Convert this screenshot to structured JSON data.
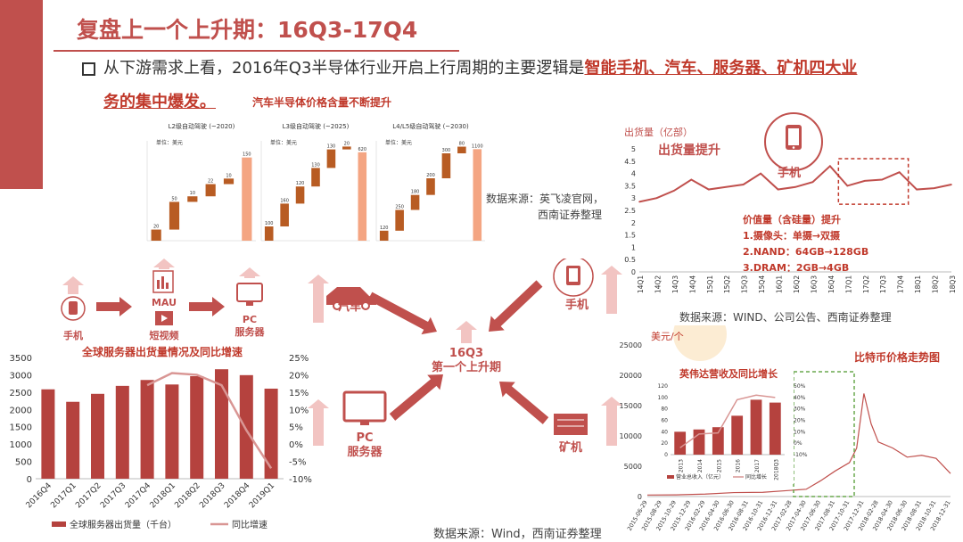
{
  "slide": {
    "title": "复盘上一个上升期：16Q3-17Q4",
    "bullet_pre": "从下游需求上看，2016年Q3半导体行业开启上行周期的主要逻辑是",
    "bullet_bold": "智能手机、汽车、服务器、矿机四大业",
    "bullet_line2": "务的集中爆发。"
  },
  "colors": {
    "accent": "#c0504d",
    "bar": "#b5423e",
    "line": "#d99694",
    "wf_dark": "#b85c23",
    "wf_light": "#f4a582"
  },
  "auto": {
    "heading": "汽车半导体价格含量不断提升",
    "panels": [
      {
        "title": "L2级自动驾驶 (~2020)",
        "unit": "单位：美元",
        "values": [
          20,
          50,
          10,
          22,
          10,
          150
        ]
      },
      {
        "title": "L3级自动驾驶 (~2025)",
        "unit": "单位：美元",
        "values": [
          100,
          160,
          120,
          130,
          130,
          20,
          620
        ]
      },
      {
        "title": "L4/L5级自动驾驶 (~2030)",
        "unit": "单位：美元",
        "values": [
          120,
          250,
          180,
          200,
          300,
          80,
          1100
        ]
      }
    ],
    "source": "数据来源：英飞凌官网，",
    "source2": "西南证券整理"
  },
  "phone_chart": {
    "ylabel": "出货量（亿部）",
    "label": "出货量提升",
    "icon_label": "手机",
    "value_title": "价值量（含硅量）提升",
    "value_items": [
      "1.摄像头：单摄→双摄",
      "2.NAND：64GB→128GB",
      "3.DRAM：2GB→4GB"
    ],
    "source": "数据来源：WIND、公司公告、西南证券整理",
    "chart_data": {
      "type": "line",
      "x": [
        "14Q1",
        "14Q2",
        "14Q3",
        "14Q4",
        "15Q1",
        "15Q2",
        "15Q3",
        "15Q4",
        "16Q1",
        "16Q2",
        "16Q3",
        "16Q4",
        "17Q1",
        "17Q2",
        "17Q3",
        "17Q4",
        "18Q1",
        "18Q2",
        "18Q3"
      ],
      "values": [
        2.85,
        3.0,
        3.3,
        3.75,
        3.35,
        3.45,
        3.55,
        4.0,
        3.35,
        3.45,
        3.65,
        4.3,
        3.5,
        3.7,
        3.75,
        4.05,
        3.35,
        3.4,
        3.55
      ],
      "ylim": [
        0,
        5
      ],
      "yticks": [
        "0",
        "0.5",
        "1",
        "1.5",
        "2",
        "2.5",
        "3",
        "3.5",
        "4",
        "4.5",
        "5"
      ]
    }
  },
  "flow": {
    "phone": "手机",
    "mau": "MAU",
    "short_video": "短视频",
    "pc_server": [
      "PC",
      "服务器"
    ],
    "car": "汽车",
    "phone2": "手机",
    "pc2": [
      "PC",
      "服务器"
    ],
    "miner": "矿机",
    "center": [
      "16Q3",
      "第一个上升期"
    ]
  },
  "server_chart": {
    "title": "全球服务器出货量情况及同比增速",
    "legend_bar": "全球服务器出货量（千台）",
    "legend_line": "同比增速",
    "chart_data": {
      "type": "bar",
      "categories": [
        "2016Q4",
        "2017Q1",
        "2017Q2",
        "2017Q3",
        "2017Q4",
        "2018Q1",
        "2018Q2",
        "2018Q3",
        "2018Q4",
        "2019Q1"
      ],
      "series": [
        {
          "name": "全球服务器出货量（千台）",
          "values": [
            2580,
            2220,
            2450,
            2680,
            2850,
            2720,
            2960,
            3160,
            2990,
            2600
          ]
        },
        {
          "name": "同比增速",
          "values": [
            null,
            null,
            null,
            null,
            17,
            20.5,
            20,
            17,
            4,
            -7
          ]
        }
      ],
      "ylim": [
        0,
        3500
      ],
      "y2lim": [
        -10,
        25
      ],
      "yticks": [
        "0",
        "500",
        "1000",
        "1500",
        "2000",
        "2500",
        "3000",
        "3500"
      ],
      "y2ticks": [
        "-10%",
        "-5%",
        "0%",
        "5%",
        "10%",
        "15%",
        "20%",
        "25%"
      ]
    }
  },
  "btc_chart": {
    "ylabel": "美元/个",
    "title": "比特币价格走势图",
    "yticks": [
      "0",
      "5000",
      "10000",
      "15000",
      "20000",
      "25000"
    ],
    "xticks": [
      "2015-06-29",
      "2015-08-29",
      "2015-10-29",
      "2015-12-29",
      "2016-02-29",
      "2016-04-30",
      "2016-06-30",
      "2016-08-31",
      "2016-10-31",
      "2016-12-31",
      "2017-02-28",
      "2017-04-30",
      "2017-06-30",
      "2017-08-31",
      "2017-10-31",
      "2017-12-31",
      "2018-02-28",
      "2018-04-30",
      "2018-06-30",
      "2018-08-31",
      "2018-10-31",
      "2018-12-31"
    ],
    "ylim": [
      0,
      25000
    ],
    "chart_data": {
      "type": "line",
      "x": [
        "2015-06",
        "2015-10",
        "2016-02",
        "2016-06",
        "2016-10",
        "2017-01",
        "2017-04",
        "2017-06",
        "2017-08",
        "2017-10",
        "2017-11",
        "2017-12",
        "2018-01",
        "2018-02",
        "2018-04",
        "2018-06",
        "2018-08",
        "2018-10",
        "2018-12"
      ],
      "values": [
        250,
        280,
        400,
        650,
        700,
        950,
        1200,
        2600,
        4200,
        5600,
        8000,
        17000,
        12000,
        9000,
        8000,
        6500,
        6800,
        6300,
        3800
      ],
      "ylim": [
        0,
        25000
      ]
    }
  },
  "nvidia_chart": {
    "title": "英伟达营收及同比增长",
    "legend_bar": "营业总收入（亿元）",
    "legend_line": "同比增长",
    "chart_data": {
      "type": "bar",
      "categories": [
        "2013",
        "2014",
        "2015",
        "2016",
        "2017",
        "2018Q3"
      ],
      "series": [
        {
          "name": "营业总收入（亿元）",
          "values": [
            40,
            44,
            48,
            68,
            96,
            91
          ]
        },
        {
          "name": "同比增长",
          "values": [
            -4,
            8,
            9,
            38,
            42,
            40
          ]
        }
      ],
      "ylim": [
        0,
        120
      ],
      "y2lim": [
        -10,
        50
      ],
      "yticks": [
        "0",
        "20",
        "40",
        "60",
        "80",
        "100",
        "120"
      ],
      "y2ticks": [
        "-10%",
        "0%",
        "10%",
        "20%",
        "30%",
        "40%",
        "50%"
      ]
    }
  },
  "bottom_source": "数据来源：Wind，西南证券整理",
  "watermark": "西南证券"
}
